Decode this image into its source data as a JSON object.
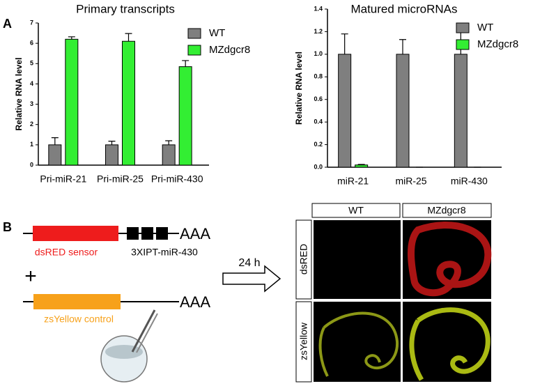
{
  "chart_data": [
    {
      "type": "bar",
      "title": "Primary transcripts",
      "ylabel": "Relative RNA level",
      "categories": [
        "Pri-miR-21",
        "Pri-miR-25",
        "Pri-miR-430"
      ],
      "series": [
        {
          "name": "WT",
          "color": "#7f7f7f",
          "values": [
            1.0,
            1.0,
            1.0
          ],
          "errors": [
            0.35,
            0.18,
            0.2
          ]
        },
        {
          "name": "MZdgcr8",
          "color": "#33ee33",
          "values": [
            6.2,
            6.1,
            4.85
          ],
          "errors": [
            0.12,
            0.38,
            0.3
          ]
        }
      ],
      "ylim": [
        0,
        7
      ],
      "yticks": [
        0,
        1,
        2,
        3,
        4,
        5,
        6,
        7
      ],
      "legend": "upper right"
    },
    {
      "type": "bar",
      "title": "Matured microRNAs",
      "ylabel": "Relative RNA level",
      "categories": [
        "miR-21",
        "miR-25",
        "miR-430"
      ],
      "series": [
        {
          "name": "WT",
          "color": "#7f7f7f",
          "values": [
            1.0,
            1.0,
            1.0
          ],
          "errors": [
            0.18,
            0.13,
            0.27
          ]
        },
        {
          "name": "MZdgcr8",
          "color": "#33ee33",
          "values": [
            0.02,
            0,
            0
          ],
          "errors": [
            0.005,
            0,
            0
          ]
        }
      ],
      "ylim": [
        0,
        1.4
      ],
      "yticks": [
        {
          "value": 0,
          "label": "0.0"
        },
        0.2,
        0.4,
        0.6,
        0.8,
        {
          "value": 1,
          "label": "1.0"
        },
        1.2,
        1.4
      ],
      "legend": "upper right"
    }
  ],
  "panels": {
    "a": "A",
    "b": "B"
  },
  "diagram": {
    "sensor": "dsRED sensor",
    "sites": "3XIPT-miR-430",
    "polya": "AAA",
    "plus": "+",
    "control": "zsYellow control",
    "time": "24 h"
  },
  "micrographs": {
    "columns": [
      "WT",
      "MZdgcr8"
    ],
    "rows": [
      "dsRED",
      "zsYellow"
    ]
  }
}
